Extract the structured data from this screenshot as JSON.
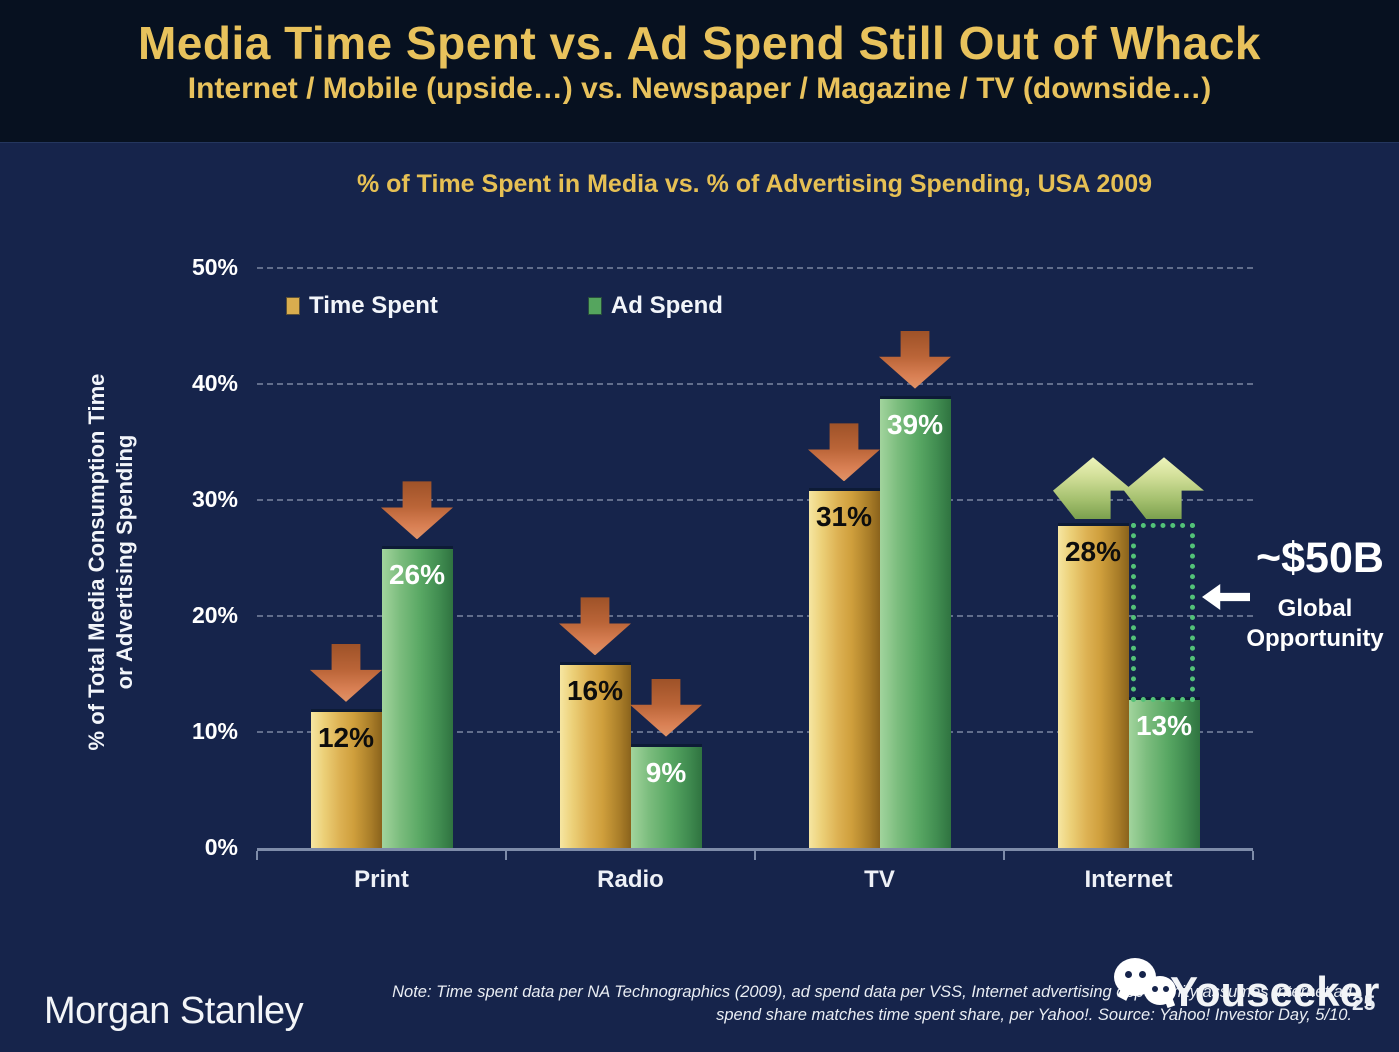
{
  "slide": {
    "title": "Media Time Spent vs. Ad Spend Still Out of Whack",
    "subtitle": "Internet / Mobile (upside…) vs. Newspaper / Magazine / TV (downside…)"
  },
  "chart_data": {
    "type": "bar",
    "title": "% of Time Spent in Media vs. % of Advertising Spending, USA 2009",
    "categories": [
      "Print",
      "Radio",
      "TV",
      "Internet"
    ],
    "series": [
      {
        "name": "Time Spent",
        "values": [
          12,
          16,
          31,
          28
        ],
        "color": "#d9ad4e",
        "label_color": "#0d0d0d"
      },
      {
        "name": "Ad Spend",
        "values": [
          26,
          9,
          39,
          13
        ],
        "color": "#55a55e",
        "label_color": "#ffffff"
      }
    ],
    "value_suffix": "%",
    "ylabel_lines": [
      "% of Total Media Consumption Time",
      "or Advertising Spending"
    ],
    "yticks": [
      0,
      10,
      20,
      30,
      40,
      50
    ],
    "ylim": [
      0,
      50
    ],
    "grid": "horizontal-dashed",
    "legend_position": "top-left-inside",
    "trend_arrows": [
      [
        "down",
        "down"
      ],
      [
        "down",
        "down"
      ],
      [
        "down",
        "down"
      ],
      [
        "up",
        "up"
      ]
    ],
    "trend_arrow_colors": {
      "down": "#c46f3f",
      "up": "#a3bf6d"
    },
    "annotation": {
      "value": "~$50B",
      "label_lines": [
        "Global",
        "Opportunity"
      ],
      "target_category": "Internet",
      "style": "green dotted box spanning gap between Ad Spend (13%) and Time Spent (28%)"
    }
  },
  "footer": {
    "brand": "Morgan Stanley",
    "note_line1": "Note: Time spent data per NA Technographics (2009), ad spend data per VSS, Internet advertising opportunity assumes Internet ad",
    "note_line2": "spend share matches time spent share, per Yahoo!. Source: Yahoo! Investor Day, 5/10.",
    "watermark": "Youseeker",
    "page": "25"
  },
  "colors": {
    "background": "#16244b",
    "header_background": "#071120",
    "title_gold": "#e8c25c",
    "bar_gold": "#d9ad4e",
    "bar_green": "#55a55e",
    "arrow_down_red": "#c46f3f",
    "arrow_up_green": "#a3bf6d",
    "dotted_box_green": "#53c278",
    "axis_line": "#7e8ca9"
  }
}
